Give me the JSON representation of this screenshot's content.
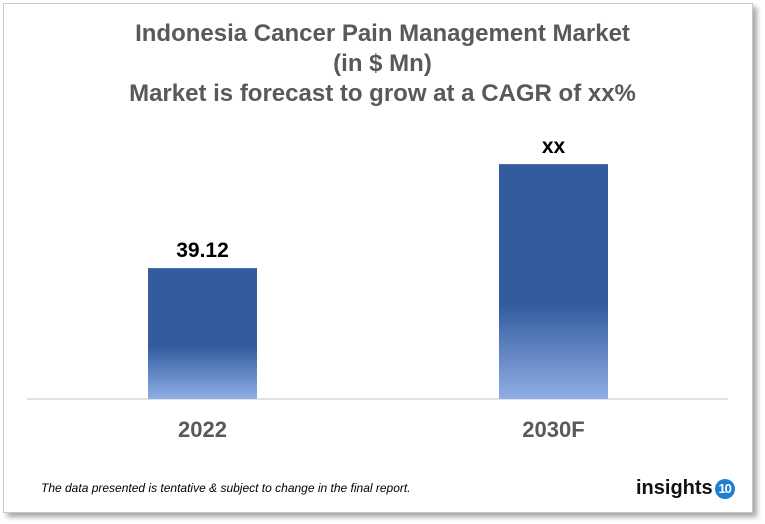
{
  "chart_data": {
    "type": "bar",
    "title": [
      "Indonesia Cancer Pain Management Market",
      "(in $ Mn)",
      "Market is forecast to grow at a CAGR of xx%"
    ],
    "categories": [
      "2022",
      "2030F"
    ],
    "values": [
      39.12,
      70.2
    ],
    "data_labels": [
      "39.12",
      "xx"
    ],
    "xlabel": "",
    "ylabel": "",
    "ylim": [
      0,
      78
    ],
    "grid": false,
    "legend": "none",
    "colors": {
      "bar_top": "#335C9F",
      "bar_bottom": "#8FAEE5",
      "axis": "#d9d9d9",
      "label": "#595959"
    }
  },
  "footnote": "The data presented is tentative & subject to change in the final report.",
  "logo": {
    "text": "insights",
    "badge": "10"
  }
}
